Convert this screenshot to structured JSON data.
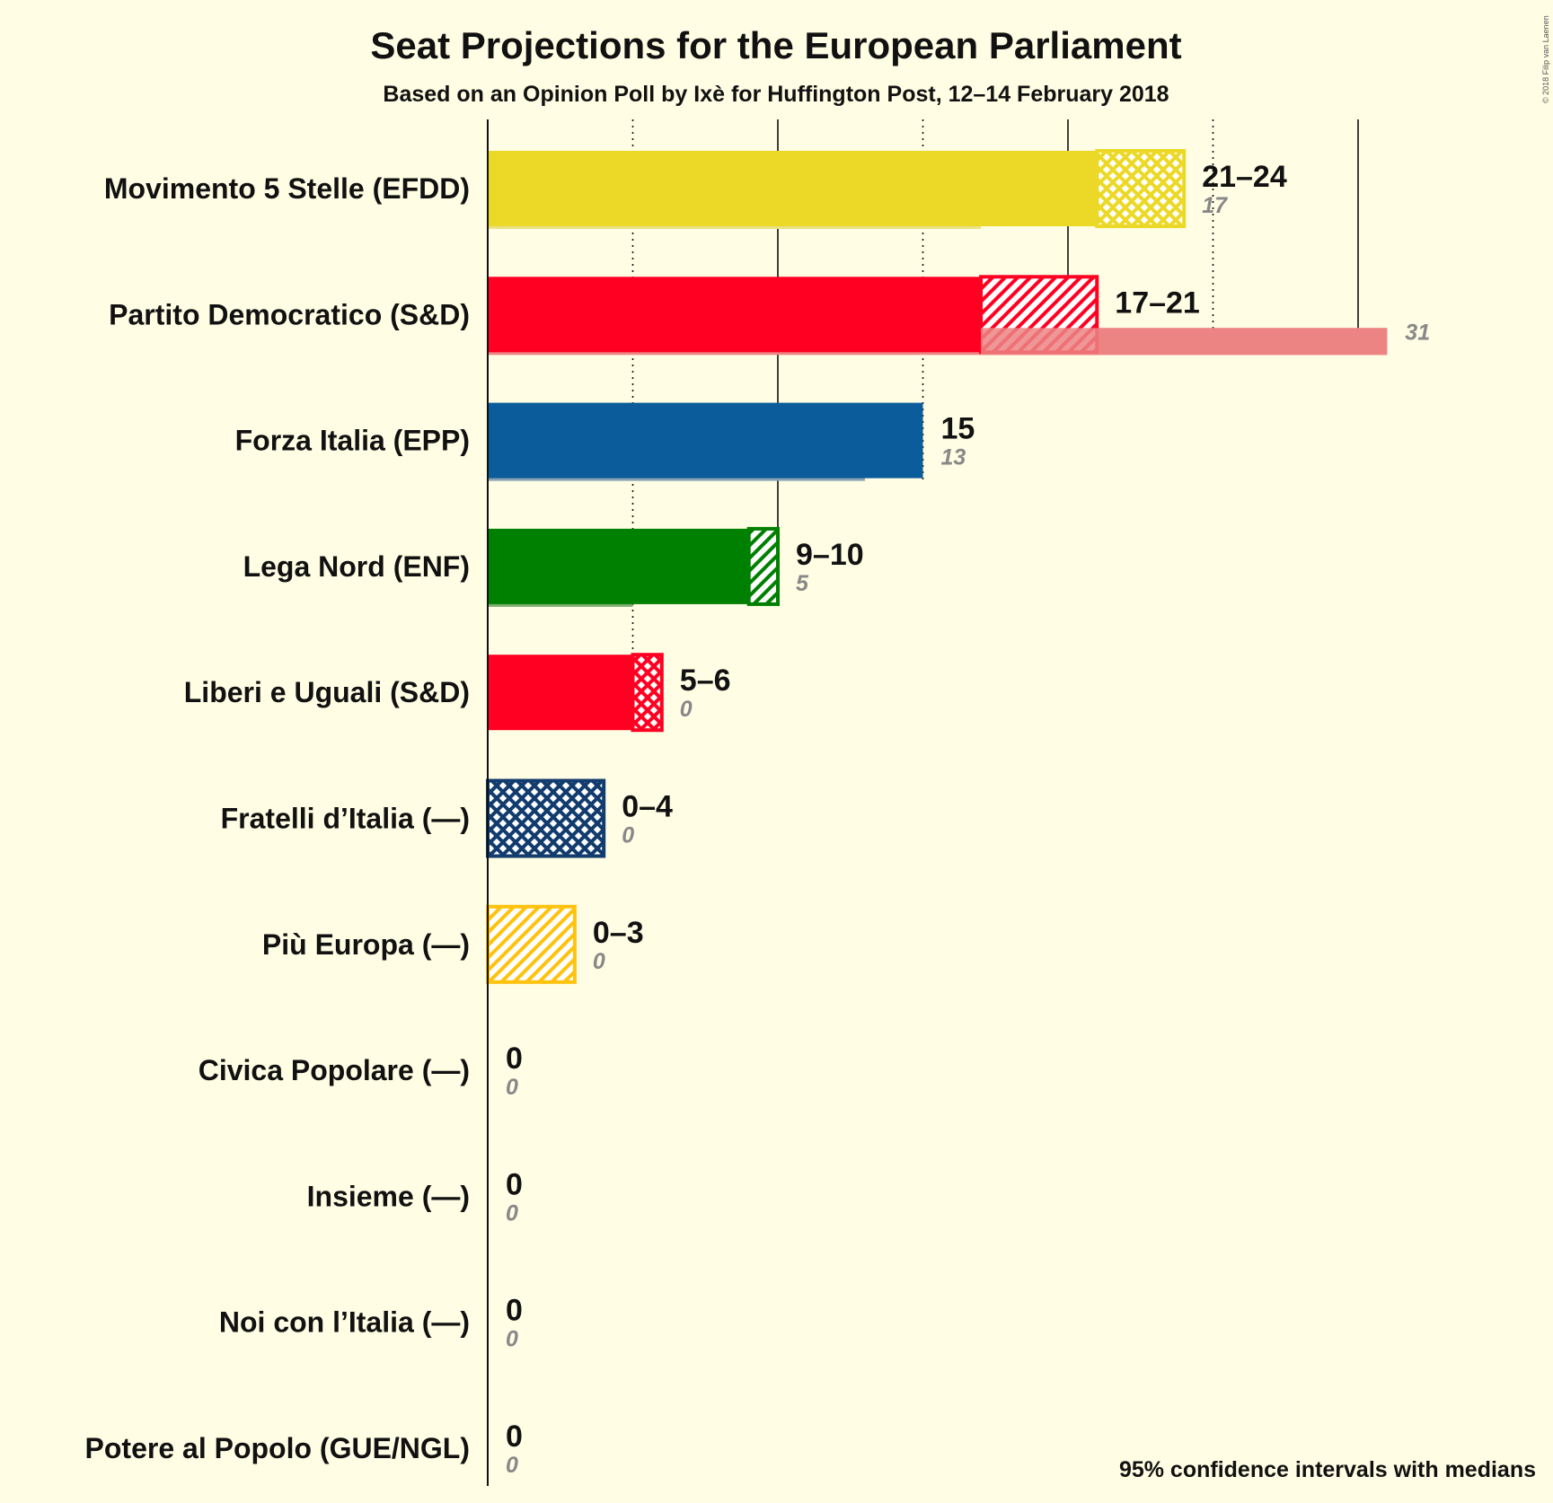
{
  "chart_data": {
    "type": "bar",
    "orientation": "horizontal",
    "title": "Seat Projections for the European Parliament",
    "subtitle": "Based on an Opinion Poll by Ixè for Huffington Post, 12–14 February 2018",
    "note": "95% confidence intervals with medians",
    "copyright": "© 2018 Filip van Laenen",
    "xlim": [
      0,
      31
    ],
    "gridlines": [
      5,
      10,
      15,
      20,
      25,
      30
    ],
    "parties": [
      {
        "name": "Movimento 5 Stelle (EFDD)",
        "color": "#ecd927",
        "prev_color": "#ebe183",
        "low": 21,
        "high": 24,
        "median": 21,
        "previous": 17,
        "range_label": "21–24",
        "previous_label": "17",
        "pattern": "cross"
      },
      {
        "name": "Partito Democratico (S&D)",
        "color": "#ff0022",
        "prev_color": "#ec8484",
        "low": 17,
        "high": 21,
        "median": 17,
        "previous": 31,
        "range_label": "17–21",
        "previous_label": "31",
        "pattern": "diag"
      },
      {
        "name": "Forza Italia (EPP)",
        "color": "#0b5c9a",
        "prev_color": "#87a2b5",
        "low": 15,
        "high": 15,
        "median": 15,
        "previous": 13,
        "range_label": "15",
        "previous_label": "13",
        "pattern": "diag"
      },
      {
        "name": "Lega Nord (ENF)",
        "color": "#008000",
        "prev_color": "#80ad70",
        "low": 9,
        "high": 10,
        "median": 9,
        "previous": 5,
        "range_label": "9–10",
        "previous_label": "5",
        "pattern": "diag"
      },
      {
        "name": "Liberi e Uguali (S&D)",
        "color": "#ff0022",
        "prev_color": "#ec8484",
        "low": 5,
        "high": 6,
        "median": 5,
        "previous": 0,
        "range_label": "5–6",
        "previous_label": "0",
        "pattern": "cross"
      },
      {
        "name": "Fratelli d’Italia (—)",
        "color": "#123c6e",
        "prev_color": "#8796ad",
        "low": 0,
        "high": 4,
        "median": 0,
        "previous": 0,
        "range_label": "0–4",
        "previous_label": "0",
        "pattern": "cross"
      },
      {
        "name": "Più Europa (—)",
        "color": "#ffc20e",
        "prev_color": "#ffe08a",
        "low": 0,
        "high": 3,
        "median": 0,
        "previous": 0,
        "range_label": "0–3",
        "previous_label": "0",
        "pattern": "diag"
      },
      {
        "name": "Civica Popolare (—)",
        "color": "#888888",
        "prev_color": "#cccccc",
        "low": 0,
        "high": 0,
        "median": 0,
        "previous": 0,
        "range_label": "0",
        "previous_label": "0",
        "pattern": "diag"
      },
      {
        "name": "Insieme (—)",
        "color": "#888888",
        "prev_color": "#cccccc",
        "low": 0,
        "high": 0,
        "median": 0,
        "previous": 0,
        "range_label": "0",
        "previous_label": "0",
        "pattern": "diag"
      },
      {
        "name": "Noi con l’Italia (—)",
        "color": "#888888",
        "prev_color": "#cccccc",
        "low": 0,
        "high": 0,
        "median": 0,
        "previous": 0,
        "range_label": "0",
        "previous_label": "0",
        "pattern": "diag"
      },
      {
        "name": "Potere al Popolo (GUE/NGL)",
        "color": "#888888",
        "prev_color": "#cccccc",
        "low": 0,
        "high": 0,
        "median": 0,
        "previous": 0,
        "range_label": "0",
        "previous_label": "0",
        "pattern": "diag"
      }
    ]
  }
}
